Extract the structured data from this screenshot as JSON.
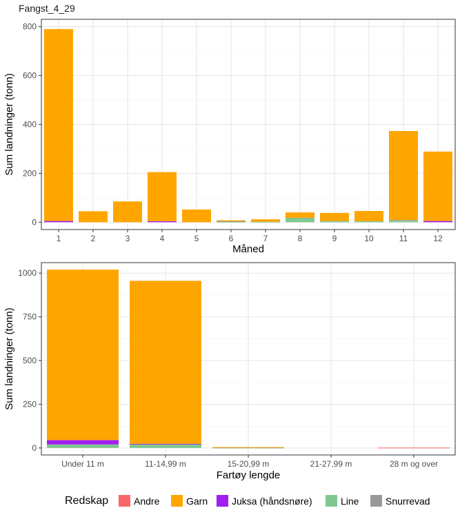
{
  "colors": {
    "Andre": "#F8676B",
    "Garn": "#FFA500",
    "Juksa (håndsnøre)": "#A020F0",
    "Line": "#80C890",
    "Snurrevad": "#999999"
  },
  "legend": {
    "title": "Redskap",
    "items": [
      "Andre",
      "Garn",
      "Juksa (håndsnøre)",
      "Line",
      "Snurrevad"
    ]
  },
  "chart_data": [
    {
      "type": "bar",
      "stacked": true,
      "title": "Fangst_4_29",
      "xlabel": "Måned",
      "ylabel": "Sum landninger (tonn)",
      "ylim": [
        -30,
        830
      ],
      "yticks": [
        0,
        200,
        400,
        600,
        800
      ],
      "categories": [
        "1",
        "2",
        "3",
        "4",
        "5",
        "6",
        "7",
        "8",
        "9",
        "10",
        "11",
        "12"
      ],
      "series": [
        {
          "name": "Andre",
          "values": [
            0,
            0,
            0,
            0,
            0,
            0,
            0,
            0,
            0,
            0,
            0,
            0
          ]
        },
        {
          "name": "Line",
          "values": [
            0,
            0,
            0,
            0,
            0,
            2,
            2,
            18,
            5,
            4,
            6,
            0
          ]
        },
        {
          "name": "Snurrevad",
          "values": [
            0,
            0,
            0,
            0,
            0,
            2,
            0,
            0,
            0,
            0,
            3,
            0
          ]
        },
        {
          "name": "Juksa (håndsnøre)",
          "values": [
            5,
            0,
            0,
            4,
            0,
            0,
            0,
            0,
            0,
            0,
            0,
            5
          ]
        },
        {
          "name": "Garn",
          "values": [
            785,
            45,
            85,
            201,
            52,
            4,
            10,
            22,
            33,
            42,
            364,
            284
          ]
        }
      ],
      "grid": true
    },
    {
      "type": "bar",
      "stacked": true,
      "title": "",
      "xlabel": "Fartøy lengde",
      "ylabel": "Sum landninger (tonn)",
      "ylim": [
        -40,
        1060
      ],
      "yticks": [
        0,
        250,
        500,
        750,
        1000
      ],
      "categories": [
        "Under 11 m",
        "11-14,99 m",
        "15-20,99 m",
        "21-27,99 m",
        "28 m og over"
      ],
      "series": [
        {
          "name": "Andre",
          "values": [
            0,
            0,
            0,
            0,
            2
          ]
        },
        {
          "name": "Line",
          "values": [
            20,
            22,
            2,
            0,
            0
          ]
        },
        {
          "name": "Snurrevad",
          "values": [
            0,
            0,
            1,
            0,
            0
          ]
        },
        {
          "name": "Juksa (håndsnøre)",
          "values": [
            25,
            2,
            0,
            0,
            0
          ]
        },
        {
          "name": "Garn",
          "values": [
            975,
            932,
            2,
            0,
            0
          ]
        }
      ],
      "grid": true
    }
  ]
}
